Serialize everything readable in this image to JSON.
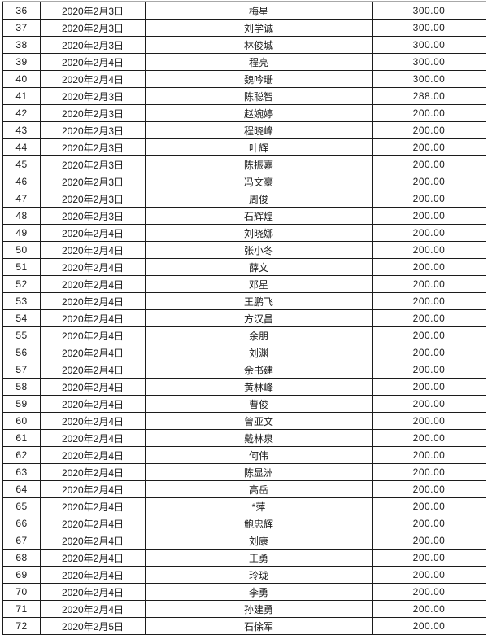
{
  "table": {
    "rows": [
      {
        "no": "36",
        "date": "2020年2月3日",
        "name": "梅星",
        "amount": "300.00"
      },
      {
        "no": "37",
        "date": "2020年2月3日",
        "name": "刘学诚",
        "amount": "300.00"
      },
      {
        "no": "38",
        "date": "2020年2月3日",
        "name": "林俊城",
        "amount": "300.00"
      },
      {
        "no": "39",
        "date": "2020年2月4日",
        "name": "程亮",
        "amount": "300.00"
      },
      {
        "no": "40",
        "date": "2020年2月4日",
        "name": "魏吟珊",
        "amount": "300.00"
      },
      {
        "no": "41",
        "date": "2020年2月3日",
        "name": "陈聪智",
        "amount": "288.00"
      },
      {
        "no": "42",
        "date": "2020年2月3日",
        "name": "赵婉婷",
        "amount": "200.00"
      },
      {
        "no": "43",
        "date": "2020年2月3日",
        "name": "程晓峰",
        "amount": "200.00"
      },
      {
        "no": "44",
        "date": "2020年2月3日",
        "name": "叶辉",
        "amount": "200.00"
      },
      {
        "no": "45",
        "date": "2020年2月3日",
        "name": "陈振嘉",
        "amount": "200.00"
      },
      {
        "no": "46",
        "date": "2020年2月3日",
        "name": "冯文豪",
        "amount": "200.00"
      },
      {
        "no": "47",
        "date": "2020年2月3日",
        "name": "周俊",
        "amount": "200.00"
      },
      {
        "no": "48",
        "date": "2020年2月3日",
        "name": "石辉煌",
        "amount": "200.00"
      },
      {
        "no": "49",
        "date": "2020年2月4日",
        "name": "刘晓娜",
        "amount": "200.00"
      },
      {
        "no": "50",
        "date": "2020年2月4日",
        "name": "张小冬",
        "amount": "200.00"
      },
      {
        "no": "51",
        "date": "2020年2月4日",
        "name": "薛文",
        "amount": "200.00"
      },
      {
        "no": "52",
        "date": "2020年2月4日",
        "name": "邓星",
        "amount": "200.00"
      },
      {
        "no": "53",
        "date": "2020年2月4日",
        "name": "王鹏飞",
        "amount": "200.00"
      },
      {
        "no": "54",
        "date": "2020年2月4日",
        "name": "方汉昌",
        "amount": "200.00"
      },
      {
        "no": "55",
        "date": "2020年2月4日",
        "name": "余朋",
        "amount": "200.00"
      },
      {
        "no": "56",
        "date": "2020年2月4日",
        "name": "刘渊",
        "amount": "200.00"
      },
      {
        "no": "57",
        "date": "2020年2月4日",
        "name": "余书建",
        "amount": "200.00"
      },
      {
        "no": "58",
        "date": "2020年2月4日",
        "name": "黄林峰",
        "amount": "200.00"
      },
      {
        "no": "59",
        "date": "2020年2月4日",
        "name": "曹俊",
        "amount": "200.00"
      },
      {
        "no": "60",
        "date": "2020年2月4日",
        "name": "曾亚文",
        "amount": "200.00"
      },
      {
        "no": "61",
        "date": "2020年2月4日",
        "name": "戴林泉",
        "amount": "200.00"
      },
      {
        "no": "62",
        "date": "2020年2月4日",
        "name": "何伟",
        "amount": "200.00"
      },
      {
        "no": "63",
        "date": "2020年2月4日",
        "name": "陈显洲",
        "amount": "200.00"
      },
      {
        "no": "64",
        "date": "2020年2月4日",
        "name": "高岳",
        "amount": "200.00"
      },
      {
        "no": "65",
        "date": "2020年2月4日",
        "name": "*萍",
        "amount": "200.00"
      },
      {
        "no": "66",
        "date": "2020年2月4日",
        "name": "鲍忠辉",
        "amount": "200.00"
      },
      {
        "no": "67",
        "date": "2020年2月4日",
        "name": "刘康",
        "amount": "200.00"
      },
      {
        "no": "68",
        "date": "2020年2月4日",
        "name": "王勇",
        "amount": "200.00"
      },
      {
        "no": "69",
        "date": "2020年2月4日",
        "name": "玲珑",
        "amount": "200.00"
      },
      {
        "no": "70",
        "date": "2020年2月4日",
        "name": "李勇",
        "amount": "200.00"
      },
      {
        "no": "71",
        "date": "2020年2月4日",
        "name": "孙建勇",
        "amount": "200.00"
      },
      {
        "no": "72",
        "date": "2020年2月5日",
        "name": "石徐军",
        "amount": "200.00"
      }
    ]
  }
}
